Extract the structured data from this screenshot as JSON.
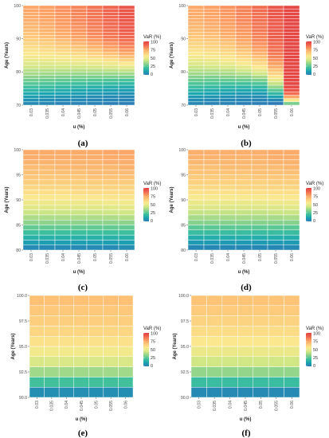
{
  "chart_data": [
    {
      "type": "heatmap",
      "label": "(a)",
      "xlabel": "u (%)",
      "ylabel": "Age (Years)",
      "x": [
        "0.03",
        "0.035",
        "0.04",
        "0.045",
        "0.05",
        "0.055",
        "0.06"
      ],
      "ylim": [
        70,
        100
      ],
      "yticks": [
        "70",
        "80",
        "90",
        "100"
      ],
      "legend_title": "VaR (%)",
      "legend_ticks": [
        "100",
        "75",
        "50",
        "25",
        "0"
      ],
      "color_range": [
        0,
        100
      ],
      "y_rows": [
        70,
        71,
        72,
        73,
        74,
        75,
        76,
        77,
        78,
        79,
        80,
        81,
        82,
        83,
        84,
        85,
        86,
        87,
        88,
        89,
        90,
        91,
        92,
        93,
        94,
        95,
        96,
        97,
        98,
        99
      ],
      "values": [
        [
          4,
          3,
          2,
          2,
          2,
          1,
          1
        ],
        [
          6,
          5,
          4,
          4,
          3,
          3,
          2
        ],
        [
          9,
          8,
          7,
          6,
          5,
          4,
          4
        ],
        [
          13,
          11,
          10,
          9,
          8,
          7,
          6
        ],
        [
          17,
          15,
          14,
          12,
          11,
          10,
          9
        ],
        [
          21,
          20,
          18,
          17,
          15,
          14,
          13
        ],
        [
          25,
          24,
          22,
          21,
          20,
          19,
          18
        ],
        [
          29,
          28,
          27,
          26,
          25,
          24,
          23
        ],
        [
          33,
          32,
          31,
          30,
          30,
          30,
          30
        ],
        [
          37,
          36,
          35,
          35,
          35,
          35,
          36
        ],
        [
          40,
          40,
          40,
          40,
          40,
          41,
          42
        ],
        [
          44,
          44,
          44,
          44,
          45,
          47,
          49
        ],
        [
          47,
          47,
          48,
          49,
          50,
          52,
          56
        ],
        [
          50,
          51,
          52,
          53,
          55,
          58,
          63
        ],
        [
          53,
          54,
          55,
          57,
          60,
          64,
          69
        ],
        [
          56,
          57,
          59,
          61,
          64,
          69,
          74
        ],
        [
          58,
          60,
          62,
          65,
          68,
          73,
          78
        ],
        [
          60,
          62,
          65,
          68,
          72,
          77,
          82
        ],
        [
          63,
          65,
          68,
          71,
          75,
          80,
          85
        ],
        [
          65,
          67,
          70,
          74,
          78,
          83,
          87
        ],
        [
          67,
          69,
          72,
          76,
          80,
          85,
          89
        ],
        [
          68,
          71,
          74,
          78,
          82,
          86,
          90
        ],
        [
          70,
          72,
          75,
          79,
          83,
          87,
          91
        ],
        [
          71,
          73,
          77,
          80,
          84,
          88,
          92
        ],
        [
          72,
          74,
          78,
          81,
          85,
          89,
          92
        ],
        [
          73,
          75,
          78,
          82,
          85,
          89,
          93
        ],
        [
          74,
          76,
          79,
          82,
          86,
          89,
          93
        ],
        [
          74,
          76,
          79,
          83,
          86,
          90,
          93
        ],
        [
          75,
          77,
          80,
          83,
          86,
          90,
          93
        ],
        [
          75,
          77,
          80,
          83,
          87,
          90,
          93
        ]
      ]
    },
    {
      "type": "heatmap",
      "label": "(b)",
      "xlabel": "u (%)",
      "ylabel": "Age (Years)",
      "x": [
        "0.03",
        "0.035",
        "0.04",
        "0.045",
        "0.05",
        "0.055",
        "0.06"
      ],
      "ylim": [
        70,
        100
      ],
      "yticks": [
        "70",
        "80",
        "90",
        "100"
      ],
      "legend_title": "VaR (%)",
      "legend_ticks": [
        "100",
        "75",
        "50",
        "25",
        "0"
      ],
      "color_range": [
        0,
        100
      ],
      "y_rows": [
        70,
        71,
        72,
        73,
        74,
        75,
        76,
        77,
        78,
        79,
        80,
        81,
        82,
        83,
        84,
        85,
        86,
        87,
        88,
        89,
        90,
        91,
        92,
        93,
        94,
        95,
        96,
        97,
        98,
        99
      ],
      "values": [
        [
          3,
          2,
          2,
          1,
          1,
          0,
          30
        ],
        [
          5,
          4,
          3,
          3,
          2,
          4,
          55
        ],
        [
          8,
          7,
          6,
          5,
          5,
          10,
          75
        ],
        [
          12,
          10,
          9,
          8,
          8,
          18,
          88
        ],
        [
          16,
          14,
          13,
          12,
          13,
          26,
          94
        ],
        [
          20,
          19,
          17,
          17,
          18,
          34,
          96
        ],
        [
          24,
          23,
          22,
          22,
          24,
          42,
          97
        ],
        [
          28,
          27,
          27,
          28,
          30,
          50,
          97
        ],
        [
          32,
          31,
          32,
          33,
          37,
          57,
          97
        ],
        [
          36,
          36,
          37,
          39,
          44,
          63,
          97
        ],
        [
          40,
          40,
          41,
          44,
          50,
          68,
          97
        ],
        [
          43,
          44,
          46,
          49,
          56,
          73,
          97
        ],
        [
          47,
          48,
          50,
          54,
          61,
          77,
          97
        ],
        [
          50,
          51,
          54,
          58,
          65,
          80,
          97
        ],
        [
          53,
          55,
          57,
          62,
          69,
          83,
          97
        ],
        [
          56,
          58,
          60,
          65,
          72,
          85,
          97
        ],
        [
          58,
          60,
          63,
          68,
          75,
          87,
          97
        ],
        [
          61,
          63,
          66,
          71,
          78,
          88,
          97
        ],
        [
          63,
          65,
          68,
          73,
          80,
          89,
          97
        ],
        [
          65,
          67,
          70,
          75,
          82,
          90,
          97
        ],
        [
          67,
          69,
          72,
          77,
          83,
          91,
          97
        ],
        [
          68,
          70,
          74,
          78,
          84,
          91,
          97
        ],
        [
          70,
          72,
          75,
          79,
          85,
          92,
          97
        ],
        [
          71,
          73,
          76,
          80,
          86,
          92,
          97
        ],
        [
          72,
          74,
          77,
          81,
          86,
          92,
          97
        ],
        [
          73,
          75,
          78,
          82,
          87,
          92,
          97
        ],
        [
          73,
          75,
          78,
          82,
          87,
          93,
          97
        ],
        [
          74,
          76,
          79,
          83,
          87,
          93,
          97
        ],
        [
          74,
          76,
          79,
          83,
          88,
          93,
          97
        ],
        [
          75,
          77,
          80,
          83,
          88,
          93,
          97
        ]
      ]
    },
    {
      "type": "heatmap",
      "label": "(c)",
      "xlabel": "u (%)",
      "ylabel": "Age (Years)",
      "x": [
        "0.03",
        "0.035",
        "0.04",
        "0.045",
        "0.05",
        "0.055",
        "0.06"
      ],
      "ylim": [
        80,
        100
      ],
      "yticks": [
        "80",
        "85",
        "90",
        "95",
        "100"
      ],
      "legend_title": "VaR (%)",
      "legend_ticks": [
        "100",
        "75",
        "50",
        "25",
        "0"
      ],
      "color_range": [
        0,
        100
      ],
      "y_rows": [
        80,
        81,
        82,
        83,
        84,
        85,
        86,
        87,
        88,
        89,
        90,
        91,
        92,
        93,
        94,
        95,
        96,
        97,
        98,
        99
      ],
      "values": [
        [
          4,
          4,
          4,
          4,
          4,
          4,
          5
        ],
        [
          9,
          9,
          9,
          9,
          9,
          9,
          9
        ],
        [
          15,
          15,
          15,
          15,
          15,
          15,
          15
        ],
        [
          21,
          21,
          21,
          21,
          21,
          21,
          21
        ],
        [
          27,
          27,
          27,
          27,
          27,
          27,
          27
        ],
        [
          33,
          33,
          33,
          33,
          33,
          33,
          33
        ],
        [
          38,
          38,
          38,
          38,
          38,
          38,
          39
        ],
        [
          43,
          43,
          43,
          43,
          43,
          44,
          44
        ],
        [
          48,
          48,
          48,
          48,
          48,
          48,
          49
        ],
        [
          52,
          52,
          52,
          52,
          52,
          53,
          53
        ],
        [
          56,
          56,
          56,
          56,
          56,
          57,
          57
        ],
        [
          59,
          59,
          59,
          60,
          60,
          60,
          60
        ],
        [
          62,
          62,
          62,
          63,
          63,
          63,
          63
        ],
        [
          65,
          65,
          65,
          65,
          65,
          66,
          66
        ],
        [
          67,
          67,
          67,
          67,
          68,
          68,
          68
        ],
        [
          69,
          69,
          69,
          69,
          70,
          70,
          70
        ],
        [
          70,
          70,
          71,
          71,
          71,
          71,
          72
        ],
        [
          72,
          72,
          72,
          72,
          72,
          73,
          73
        ],
        [
          73,
          73,
          73,
          73,
          73,
          74,
          74
        ],
        [
          74,
          74,
          74,
          74,
          74,
          75,
          75
        ]
      ]
    },
    {
      "type": "heatmap",
      "label": "(d)",
      "xlabel": "u (%)",
      "ylabel": "Age (Years)",
      "x": [
        "0.03",
        "0.035",
        "0.04",
        "0.045",
        "0.05",
        "0.055",
        "0.06"
      ],
      "ylim": [
        80,
        100
      ],
      "yticks": [
        "80",
        "85",
        "90",
        "95",
        "100"
      ],
      "legend_title": "VaR (%)",
      "legend_ticks": [
        "100",
        "75",
        "50",
        "25",
        "0"
      ],
      "color_range": [
        0,
        100
      ],
      "y_rows": [
        80,
        81,
        82,
        83,
        84,
        85,
        86,
        87,
        88,
        89,
        90,
        91,
        92,
        93,
        94,
        95,
        96,
        97,
        98,
        99
      ],
      "values": [
        [
          3,
          3,
          3,
          3,
          3,
          3,
          4
        ],
        [
          8,
          8,
          8,
          8,
          8,
          8,
          8
        ],
        [
          14,
          14,
          14,
          14,
          14,
          14,
          14
        ],
        [
          20,
          20,
          20,
          20,
          20,
          20,
          20
        ],
        [
          26,
          26,
          26,
          26,
          26,
          26,
          26
        ],
        [
          32,
          32,
          32,
          32,
          32,
          32,
          32
        ],
        [
          37,
          37,
          37,
          37,
          37,
          37,
          38
        ],
        [
          42,
          42,
          42,
          42,
          42,
          43,
          43
        ],
        [
          47,
          47,
          47,
          47,
          47,
          47,
          48
        ],
        [
          51,
          51,
          51,
          51,
          51,
          52,
          52
        ],
        [
          55,
          55,
          55,
          55,
          55,
          56,
          56
        ],
        [
          58,
          58,
          58,
          59,
          59,
          59,
          59
        ],
        [
          61,
          61,
          61,
          62,
          62,
          62,
          62
        ],
        [
          64,
          64,
          64,
          64,
          64,
          65,
          65
        ],
        [
          66,
          66,
          66,
          66,
          67,
          67,
          67
        ],
        [
          68,
          68,
          68,
          68,
          69,
          69,
          69
        ],
        [
          69,
          69,
          70,
          70,
          70,
          70,
          71
        ],
        [
          71,
          71,
          71,
          71,
          71,
          72,
          72
        ],
        [
          72,
          72,
          72,
          72,
          72,
          73,
          73
        ],
        [
          73,
          73,
          73,
          73,
          73,
          74,
          74
        ]
      ]
    },
    {
      "type": "heatmap",
      "label": "(e)",
      "xlabel": "u (%)",
      "ylabel": "Age (Years)",
      "x": [
        "0.03",
        "0.035",
        "0.04",
        "0.045",
        "0.05",
        "0.055",
        "0.06"
      ],
      "ylim": [
        90,
        100
      ],
      "yticks": [
        "90.0",
        "92.5",
        "95.0",
        "97.5",
        "100.0"
      ],
      "legend_title": "VaR (%)",
      "legend_ticks": [
        "100",
        "75",
        "50",
        "25",
        "0"
      ],
      "color_range": [
        0,
        100
      ],
      "y_rows": [
        90,
        91,
        92,
        93,
        94,
        95,
        96,
        97,
        98,
        99
      ],
      "values": [
        [
          5,
          5,
          5,
          5,
          5,
          5,
          5
        ],
        [
          22,
          22,
          22,
          22,
          22,
          22,
          22
        ],
        [
          36,
          36,
          36,
          36,
          36,
          36,
          36
        ],
        [
          46,
          46,
          46,
          46,
          46,
          46,
          46
        ],
        [
          53,
          53,
          53,
          53,
          53,
          53,
          53
        ],
        [
          58,
          58,
          58,
          58,
          58,
          58,
          58
        ],
        [
          62,
          62,
          62,
          62,
          62,
          62,
          62
        ],
        [
          65,
          65,
          65,
          65,
          65,
          65,
          65
        ],
        [
          67,
          67,
          67,
          67,
          67,
          67,
          67
        ],
        [
          69,
          69,
          69,
          69,
          69,
          69,
          69
        ]
      ]
    },
    {
      "type": "heatmap",
      "label": "(f)",
      "xlabel": "u (%)",
      "ylabel": "Age (Years)",
      "x": [
        "0.03",
        "0.035",
        "0.04",
        "0.045",
        "0.05",
        "0.055",
        "0.06"
      ],
      "ylim": [
        90,
        100
      ],
      "yticks": [
        "90.0",
        "92.5",
        "95.0",
        "97.5",
        "100.0"
      ],
      "legend_title": "VaR (%)",
      "legend_ticks": [
        "100",
        "75",
        "50",
        "25",
        "0"
      ],
      "color_range": [
        0,
        100
      ],
      "y_rows": [
        90,
        91,
        92,
        93,
        94,
        95,
        96,
        97,
        98,
        99
      ],
      "values": [
        [
          4,
          4,
          4,
          4,
          4,
          4,
          4
        ],
        [
          20,
          20,
          20,
          20,
          20,
          20,
          20
        ],
        [
          34,
          34,
          34,
          34,
          34,
          34,
          34
        ],
        [
          44,
          44,
          44,
          44,
          44,
          44,
          44
        ],
        [
          51,
          51,
          51,
          51,
          51,
          51,
          51
        ],
        [
          56,
          56,
          56,
          56,
          56,
          56,
          56
        ],
        [
          60,
          60,
          60,
          60,
          60,
          60,
          60
        ],
        [
          63,
          63,
          63,
          63,
          63,
          63,
          63
        ],
        [
          66,
          66,
          66,
          66,
          66,
          66,
          66
        ],
        [
          68,
          68,
          68,
          68,
          68,
          68,
          68
        ]
      ]
    }
  ],
  "colormap": [
    "#2c7bb6",
    "#1aa6b0",
    "#41c29b",
    "#8fd48a",
    "#d4e784",
    "#fbe98f",
    "#fdc97a",
    "#fb9c61",
    "#f06850",
    "#e03b3f"
  ]
}
